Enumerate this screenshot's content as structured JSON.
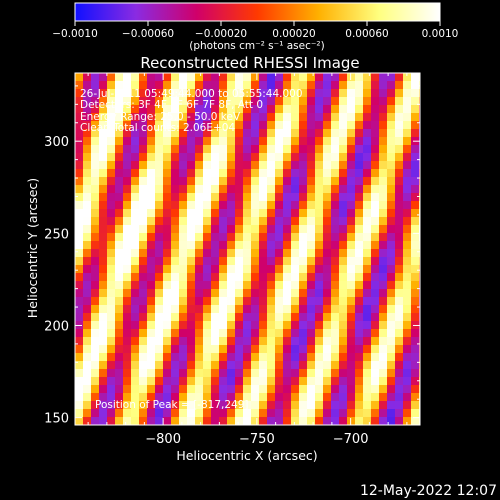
{
  "chart_data": {
    "type": "heatmap",
    "title": "Reconstructed RHESSI Image",
    "xlabel": "Heliocentric X (arcsec)",
    "ylabel": "Heliocentric Y (arcsec)",
    "xlim": [
      -847,
      -663
    ],
    "ylim": [
      146,
      337
    ],
    "xticks": [
      -800,
      -750,
      -700
    ],
    "xtick_labels": [
      "−800",
      "−750",
      "−700"
    ],
    "yticks": [
      150,
      200,
      250,
      300
    ],
    "ytick_labels": [
      "150",
      "200",
      "250",
      "300"
    ],
    "colorbar": {
      "range": [
        -0.001,
        0.001
      ],
      "ticks": [
        -0.001,
        -0.0006,
        -0.0002,
        0.0002,
        0.0006,
        0.001
      ],
      "tick_labels": [
        "−0.0010",
        "−0.00060",
        "−0.00020",
        "0.00020",
        "0.00060",
        "0.0010"
      ],
      "units": "(photons cm⁻² s⁻¹ asec⁻²)",
      "colors": [
        "#1010ff",
        "#8a2be2",
        "#d0006a",
        "#ff3a00",
        "#ffb000",
        "#ffff80",
        "#ffffff"
      ]
    },
    "annotations": [
      "26-Jul-2011 05:49:44.000 to 05:55:44.000",
      "Detectors: 3F 4F 5F 6F 7F 8F, Att 0",
      "Energy Range: 25.0 - 50.0 keV",
      "Clean    Total counts: 2.06E+04"
    ],
    "peak_label": "Position of Peak = [-817,249]",
    "peak": [
      -817,
      249
    ],
    "stripe_peak_value": 0.001,
    "stripe_pattern": "diagonal alternating bright and dark bands, tilted so x increases with y"
  },
  "footer": {
    "timestamp": "12-May-2022 12:07"
  }
}
